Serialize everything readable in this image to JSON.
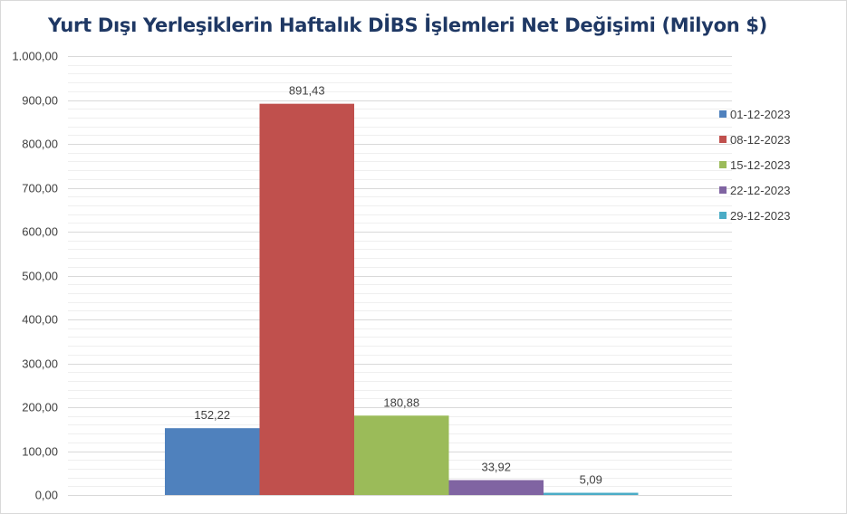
{
  "chart_data": {
    "type": "bar",
    "title": "Yurt Dışı Yerleşiklerin Haftalık DİBS İşlemleri Net Değişimi (Milyon $)",
    "xlabel": "",
    "ylabel": "",
    "ylim": [
      0,
      1000
    ],
    "yticks": [
      0,
      100,
      200,
      300,
      400,
      500,
      600,
      700,
      800,
      900,
      1000
    ],
    "ytick_labels": [
      "0,00",
      "100,00",
      "200,00",
      "300,00",
      "400,00",
      "500,00",
      "600,00",
      "700,00",
      "800,00",
      "900,00",
      "1.000,00"
    ],
    "grid": true,
    "legend_position": "right",
    "series": [
      {
        "name": "01-12-2023",
        "value": 152.22,
        "label": "152,22",
        "color": "#4f81bd"
      },
      {
        "name": "08-12-2023",
        "value": 891.43,
        "label": "891,43",
        "color": "#c0504d"
      },
      {
        "name": "15-12-2023",
        "value": 180.88,
        "label": "180,88",
        "color": "#9bbb59"
      },
      {
        "name": "22-12-2023",
        "value": 33.92,
        "label": "33,92",
        "color": "#8064a2"
      },
      {
        "name": "29-12-2023",
        "value": 5.09,
        "label": "5,09",
        "color": "#4bacc6"
      }
    ]
  }
}
